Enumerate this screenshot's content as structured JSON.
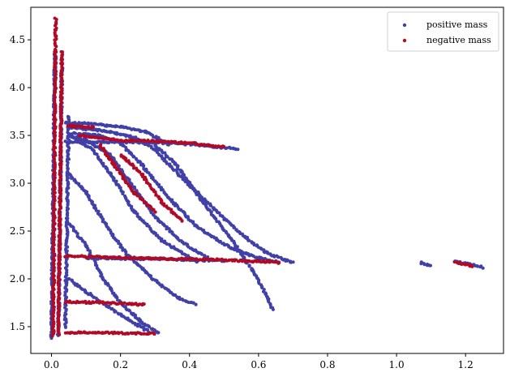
{
  "chart_data": {
    "type": "scatter",
    "title": "",
    "xlabel": "",
    "ylabel": "",
    "xlim": [
      -0.06,
      1.31
    ],
    "ylim": [
      1.22,
      4.84
    ],
    "x_ticks": [
      0.0,
      0.2,
      0.4,
      0.6,
      0.8,
      1.0,
      1.2
    ],
    "y_ticks": [
      1.5,
      2.0,
      2.5,
      3.0,
      3.5,
      4.0,
      4.5
    ],
    "x_tick_labels": [
      "0.0",
      "0.2",
      "0.4",
      "0.6",
      "0.8",
      "1.0",
      "1.2"
    ],
    "y_tick_labels": [
      "1.5",
      "2.0",
      "2.5",
      "3.0",
      "3.5",
      "4.0",
      "4.5"
    ],
    "grid": false,
    "legend": {
      "position": "top-right"
    },
    "series": [
      {
        "name": "positive mass",
        "color": "#4040a8",
        "segments": [
          [
            [
              0.0,
              1.38
            ],
            [
              0.01,
              4.35
            ]
          ],
          [
            [
              0.02,
              1.4
            ],
            [
              0.03,
              4.2
            ]
          ],
          [
            [
              0.04,
              1.5
            ],
            [
              0.05,
              3.7
            ]
          ],
          [
            [
              0.04,
              3.63
            ],
            [
              0.12,
              3.62
            ],
            [
              0.2,
              3.59
            ],
            [
              0.27,
              3.54
            ],
            [
              0.32,
              3.45
            ],
            [
              0.34,
              3.4
            ]
          ],
          [
            [
              0.05,
              3.58
            ],
            [
              0.15,
              3.55
            ],
            [
              0.24,
              3.48
            ],
            [
              0.3,
              3.35
            ],
            [
              0.38,
              3.05
            ],
            [
              0.48,
              2.7
            ],
            [
              0.56,
              2.44
            ],
            [
              0.62,
              2.28
            ],
            [
              0.68,
              2.19
            ],
            [
              0.7,
              2.17
            ]
          ],
          [
            [
              0.06,
              3.52
            ],
            [
              0.14,
              3.5
            ],
            [
              0.2,
              3.42
            ],
            [
              0.26,
              3.2
            ],
            [
              0.34,
              2.85
            ],
            [
              0.42,
              2.55
            ],
            [
              0.52,
              2.32
            ],
            [
              0.6,
              2.22
            ],
            [
              0.66,
              2.17
            ]
          ],
          [
            [
              0.05,
              3.5
            ],
            [
              0.1,
              3.45
            ],
            [
              0.17,
              3.3
            ],
            [
              0.23,
              3.0
            ],
            [
              0.3,
              2.65
            ],
            [
              0.38,
              2.38
            ],
            [
              0.46,
              2.2
            ]
          ],
          [
            [
              0.06,
              3.48
            ],
            [
              0.12,
              3.35
            ],
            [
              0.18,
              3.05
            ],
            [
              0.24,
              2.7
            ],
            [
              0.32,
              2.4
            ],
            [
              0.42,
              2.18
            ]
          ],
          [
            [
              0.05,
              3.1
            ],
            [
              0.1,
              2.9
            ],
            [
              0.16,
              2.55
            ],
            [
              0.22,
              2.25
            ],
            [
              0.3,
              1.98
            ],
            [
              0.37,
              1.8
            ],
            [
              0.42,
              1.73
            ]
          ],
          [
            [
              0.3,
              3.4
            ],
            [
              0.36,
              3.2
            ],
            [
              0.44,
              2.8
            ],
            [
              0.52,
              2.42
            ],
            [
              0.58,
              2.1
            ],
            [
              0.62,
              1.85
            ],
            [
              0.64,
              1.68
            ]
          ],
          [
            [
              0.05,
              2.58
            ],
            [
              0.1,
              2.35
            ],
            [
              0.15,
              2.0
            ],
            [
              0.2,
              1.75
            ],
            [
              0.26,
              1.55
            ],
            [
              0.31,
              1.43
            ]
          ],
          [
            [
              0.05,
              2.0
            ],
            [
              0.1,
              1.87
            ],
            [
              0.16,
              1.72
            ],
            [
              0.22,
              1.58
            ],
            [
              0.28,
              1.45
            ]
          ],
          [
            [
              0.1,
              2.22
            ],
            [
              0.2,
              2.21
            ],
            [
              0.3,
              2.21
            ],
            [
              0.4,
              2.2
            ],
            [
              0.5,
              2.19
            ]
          ],
          [
            [
              0.04,
              3.43
            ],
            [
              0.2,
              3.43
            ],
            [
              0.36,
              3.42
            ],
            [
              0.48,
              3.38
            ],
            [
              0.54,
              3.36
            ]
          ],
          [
            [
              1.07,
              2.17
            ],
            [
              1.09,
              2.15
            ],
            [
              1.1,
              2.14
            ]
          ],
          [
            [
              1.17,
              2.18
            ],
            [
              1.2,
              2.16
            ],
            [
              1.23,
              2.14
            ],
            [
              1.25,
              2.12
            ]
          ]
        ]
      },
      {
        "name": "negative mass",
        "color": "#b00a26",
        "segments": [
          [
            [
              0.005,
              1.4
            ],
            [
              0.012,
              4.72
            ]
          ],
          [
            [
              0.02,
              1.42
            ],
            [
              0.03,
              4.38
            ]
          ],
          [
            [
              0.04,
              1.44
            ],
            [
              0.3,
              1.43
            ]
          ],
          [
            [
              0.04,
              1.76
            ],
            [
              0.15,
              1.75
            ],
            [
              0.27,
              1.73
            ]
          ],
          [
            [
              0.04,
              2.24
            ],
            [
              0.2,
              2.22
            ],
            [
              0.35,
              2.21
            ],
            [
              0.48,
              2.2
            ],
            [
              0.62,
              2.18
            ],
            [
              0.66,
              2.17
            ]
          ],
          [
            [
              0.08,
              3.5
            ],
            [
              0.2,
              3.45
            ],
            [
              0.3,
              3.44
            ],
            [
              0.4,
              3.42
            ],
            [
              0.5,
              3.38
            ]
          ],
          [
            [
              0.05,
              3.6
            ],
            [
              0.12,
              3.58
            ]
          ],
          [
            [
              0.2,
              3.3
            ],
            [
              0.26,
              3.1
            ],
            [
              0.32,
              2.8
            ],
            [
              0.38,
              2.6
            ]
          ],
          [
            [
              0.14,
              3.4
            ],
            [
              0.18,
              3.2
            ],
            [
              0.24,
              2.9
            ],
            [
              0.3,
              2.7
            ]
          ],
          [
            [
              1.17,
              2.17
            ],
            [
              1.2,
              2.15
            ],
            [
              1.22,
              2.13
            ]
          ]
        ]
      }
    ]
  }
}
